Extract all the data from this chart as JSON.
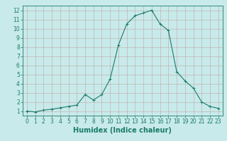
{
  "x": [
    0,
    1,
    2,
    3,
    4,
    5,
    6,
    7,
    8,
    9,
    10,
    11,
    12,
    13,
    14,
    15,
    16,
    17,
    18,
    19,
    20,
    21,
    22,
    23
  ],
  "y": [
    1.0,
    0.9,
    1.1,
    1.2,
    1.35,
    1.5,
    1.65,
    2.8,
    2.2,
    2.8,
    4.5,
    8.2,
    10.5,
    11.4,
    11.7,
    12.0,
    10.5,
    9.8,
    5.3,
    4.3,
    3.5,
    2.0,
    1.5,
    1.3
  ],
  "line_color": "#1a7a6a",
  "marker": "+",
  "marker_size": 3,
  "bg_color": "#c8eaea",
  "grid_color": "#c0a8a8",
  "xlabel": "Humidex (Indice chaleur)",
  "xlabel_fontsize": 7,
  "ylim": [
    0.5,
    12.5
  ],
  "xlim": [
    -0.5,
    23.5
  ],
  "yticks": [
    1,
    2,
    3,
    4,
    5,
    6,
    7,
    8,
    9,
    10,
    11,
    12
  ],
  "xticks": [
    0,
    1,
    2,
    3,
    4,
    5,
    6,
    7,
    8,
    9,
    10,
    11,
    12,
    13,
    14,
    15,
    16,
    17,
    18,
    19,
    20,
    21,
    22,
    23
  ],
  "tick_fontsize": 5.5
}
